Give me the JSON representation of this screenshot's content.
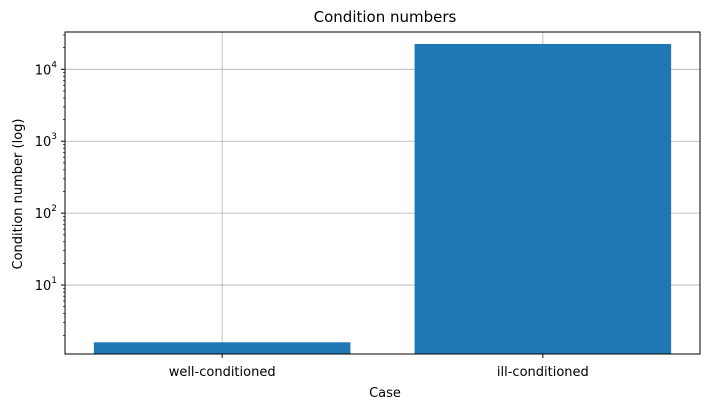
{
  "chart_data": {
    "type": "bar",
    "title": "Condition numbers",
    "xlabel": "Case",
    "ylabel": "Condition number (log)",
    "categories": [
      "well-conditioned",
      "ill-conditioned"
    ],
    "values": [
      1.6,
      22500
    ],
    "y_scale": "log",
    "ylim": [
      1.1,
      33000
    ],
    "y_ticks": [
      {
        "base": "10",
        "exp": "1",
        "value": 10
      },
      {
        "base": "10",
        "exp": "2",
        "value": 100
      },
      {
        "base": "10",
        "exp": "3",
        "value": 1000
      },
      {
        "base": "10",
        "exp": "4",
        "value": 10000
      }
    ],
    "grid": true,
    "bar_color": "#1f77b4",
    "grid_color": "#b0b0b0"
  }
}
